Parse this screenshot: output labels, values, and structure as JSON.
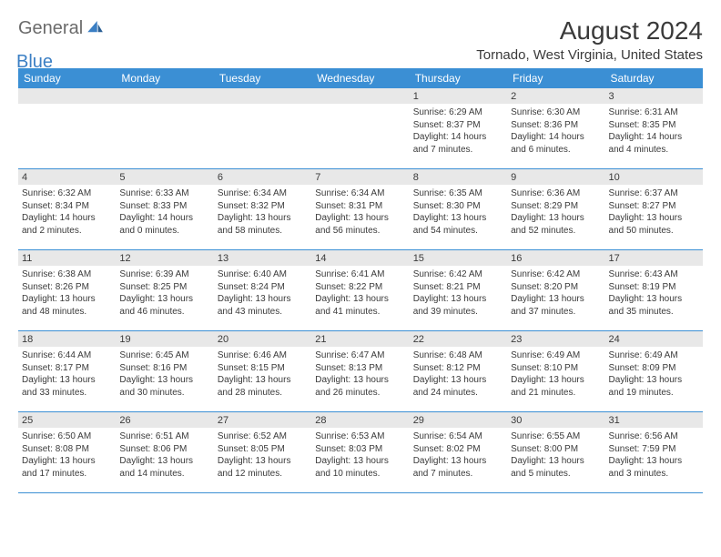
{
  "logo": {
    "word1": "General",
    "word2": "Blue"
  },
  "title": "August 2024",
  "location": "Tornado, West Virginia, United States",
  "colors": {
    "header_bg": "#3b8fd4",
    "header_text": "#ffffff",
    "daynum_bg": "#e8e8e8",
    "border": "#3b8fd4",
    "text": "#3a3a3a",
    "logo_gray": "#6b6b6b",
    "logo_blue": "#3b7fc4",
    "page_bg": "#ffffff"
  },
  "typography": {
    "title_fontsize": 28,
    "location_fontsize": 15,
    "dow_fontsize": 12,
    "daynum_fontsize": 11,
    "body_fontsize": 10
  },
  "days_of_week": [
    "Sunday",
    "Monday",
    "Tuesday",
    "Wednesday",
    "Thursday",
    "Friday",
    "Saturday"
  ],
  "weeks": [
    [
      {
        "n": "",
        "sr": "",
        "ss": "",
        "dl": ""
      },
      {
        "n": "",
        "sr": "",
        "ss": "",
        "dl": ""
      },
      {
        "n": "",
        "sr": "",
        "ss": "",
        "dl": ""
      },
      {
        "n": "",
        "sr": "",
        "ss": "",
        "dl": ""
      },
      {
        "n": "1",
        "sr": "Sunrise: 6:29 AM",
        "ss": "Sunset: 8:37 PM",
        "dl": "Daylight: 14 hours and 7 minutes."
      },
      {
        "n": "2",
        "sr": "Sunrise: 6:30 AM",
        "ss": "Sunset: 8:36 PM",
        "dl": "Daylight: 14 hours and 6 minutes."
      },
      {
        "n": "3",
        "sr": "Sunrise: 6:31 AM",
        "ss": "Sunset: 8:35 PM",
        "dl": "Daylight: 14 hours and 4 minutes."
      }
    ],
    [
      {
        "n": "4",
        "sr": "Sunrise: 6:32 AM",
        "ss": "Sunset: 8:34 PM",
        "dl": "Daylight: 14 hours and 2 minutes."
      },
      {
        "n": "5",
        "sr": "Sunrise: 6:33 AM",
        "ss": "Sunset: 8:33 PM",
        "dl": "Daylight: 14 hours and 0 minutes."
      },
      {
        "n": "6",
        "sr": "Sunrise: 6:34 AM",
        "ss": "Sunset: 8:32 PM",
        "dl": "Daylight: 13 hours and 58 minutes."
      },
      {
        "n": "7",
        "sr": "Sunrise: 6:34 AM",
        "ss": "Sunset: 8:31 PM",
        "dl": "Daylight: 13 hours and 56 minutes."
      },
      {
        "n": "8",
        "sr": "Sunrise: 6:35 AM",
        "ss": "Sunset: 8:30 PM",
        "dl": "Daylight: 13 hours and 54 minutes."
      },
      {
        "n": "9",
        "sr": "Sunrise: 6:36 AM",
        "ss": "Sunset: 8:29 PM",
        "dl": "Daylight: 13 hours and 52 minutes."
      },
      {
        "n": "10",
        "sr": "Sunrise: 6:37 AM",
        "ss": "Sunset: 8:27 PM",
        "dl": "Daylight: 13 hours and 50 minutes."
      }
    ],
    [
      {
        "n": "11",
        "sr": "Sunrise: 6:38 AM",
        "ss": "Sunset: 8:26 PM",
        "dl": "Daylight: 13 hours and 48 minutes."
      },
      {
        "n": "12",
        "sr": "Sunrise: 6:39 AM",
        "ss": "Sunset: 8:25 PM",
        "dl": "Daylight: 13 hours and 46 minutes."
      },
      {
        "n": "13",
        "sr": "Sunrise: 6:40 AM",
        "ss": "Sunset: 8:24 PM",
        "dl": "Daylight: 13 hours and 43 minutes."
      },
      {
        "n": "14",
        "sr": "Sunrise: 6:41 AM",
        "ss": "Sunset: 8:22 PM",
        "dl": "Daylight: 13 hours and 41 minutes."
      },
      {
        "n": "15",
        "sr": "Sunrise: 6:42 AM",
        "ss": "Sunset: 8:21 PM",
        "dl": "Daylight: 13 hours and 39 minutes."
      },
      {
        "n": "16",
        "sr": "Sunrise: 6:42 AM",
        "ss": "Sunset: 8:20 PM",
        "dl": "Daylight: 13 hours and 37 minutes."
      },
      {
        "n": "17",
        "sr": "Sunrise: 6:43 AM",
        "ss": "Sunset: 8:19 PM",
        "dl": "Daylight: 13 hours and 35 minutes."
      }
    ],
    [
      {
        "n": "18",
        "sr": "Sunrise: 6:44 AM",
        "ss": "Sunset: 8:17 PM",
        "dl": "Daylight: 13 hours and 33 minutes."
      },
      {
        "n": "19",
        "sr": "Sunrise: 6:45 AM",
        "ss": "Sunset: 8:16 PM",
        "dl": "Daylight: 13 hours and 30 minutes."
      },
      {
        "n": "20",
        "sr": "Sunrise: 6:46 AM",
        "ss": "Sunset: 8:15 PM",
        "dl": "Daylight: 13 hours and 28 minutes."
      },
      {
        "n": "21",
        "sr": "Sunrise: 6:47 AM",
        "ss": "Sunset: 8:13 PM",
        "dl": "Daylight: 13 hours and 26 minutes."
      },
      {
        "n": "22",
        "sr": "Sunrise: 6:48 AM",
        "ss": "Sunset: 8:12 PM",
        "dl": "Daylight: 13 hours and 24 minutes."
      },
      {
        "n": "23",
        "sr": "Sunrise: 6:49 AM",
        "ss": "Sunset: 8:10 PM",
        "dl": "Daylight: 13 hours and 21 minutes."
      },
      {
        "n": "24",
        "sr": "Sunrise: 6:49 AM",
        "ss": "Sunset: 8:09 PM",
        "dl": "Daylight: 13 hours and 19 minutes."
      }
    ],
    [
      {
        "n": "25",
        "sr": "Sunrise: 6:50 AM",
        "ss": "Sunset: 8:08 PM",
        "dl": "Daylight: 13 hours and 17 minutes."
      },
      {
        "n": "26",
        "sr": "Sunrise: 6:51 AM",
        "ss": "Sunset: 8:06 PM",
        "dl": "Daylight: 13 hours and 14 minutes."
      },
      {
        "n": "27",
        "sr": "Sunrise: 6:52 AM",
        "ss": "Sunset: 8:05 PM",
        "dl": "Daylight: 13 hours and 12 minutes."
      },
      {
        "n": "28",
        "sr": "Sunrise: 6:53 AM",
        "ss": "Sunset: 8:03 PM",
        "dl": "Daylight: 13 hours and 10 minutes."
      },
      {
        "n": "29",
        "sr": "Sunrise: 6:54 AM",
        "ss": "Sunset: 8:02 PM",
        "dl": "Daylight: 13 hours and 7 minutes."
      },
      {
        "n": "30",
        "sr": "Sunrise: 6:55 AM",
        "ss": "Sunset: 8:00 PM",
        "dl": "Daylight: 13 hours and 5 minutes."
      },
      {
        "n": "31",
        "sr": "Sunrise: 6:56 AM",
        "ss": "Sunset: 7:59 PM",
        "dl": "Daylight: 13 hours and 3 minutes."
      }
    ]
  ]
}
